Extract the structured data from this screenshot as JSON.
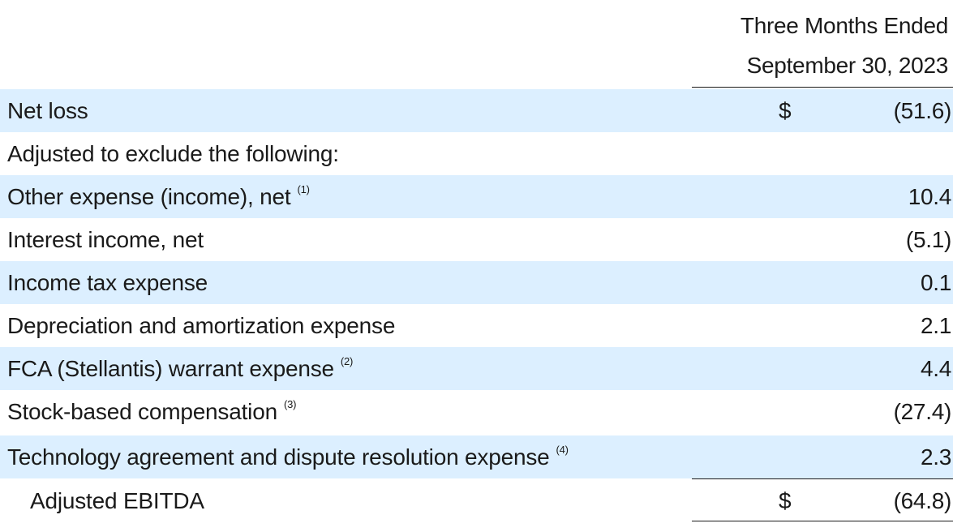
{
  "header": {
    "line1": "Three Months Ended",
    "line2": "September 30, 2023"
  },
  "rows": [
    {
      "label": "Net loss",
      "footnote": "",
      "currency": "$",
      "value": "(51.6)"
    },
    {
      "label": "Adjusted to exclude the following:",
      "footnote": "",
      "currency": "",
      "value": ""
    },
    {
      "label": "Other expense (income), net",
      "footnote": "(1)",
      "currency": "",
      "value": "10.4"
    },
    {
      "label": "Interest income, net",
      "footnote": "",
      "currency": "",
      "value": "(5.1)"
    },
    {
      "label": "Income tax expense",
      "footnote": "",
      "currency": "",
      "value": "0.1"
    },
    {
      "label": "Depreciation and amortization expense",
      "footnote": "",
      "currency": "",
      "value": "2.1"
    },
    {
      "label": "FCA (Stellantis) warrant expense",
      "footnote": "(2)",
      "currency": "",
      "value": "4.4"
    },
    {
      "label": "Stock-based compensation",
      "footnote": "(3)",
      "currency": "",
      "value": "(27.4)"
    },
    {
      "label": "Technology agreement and dispute resolution expense",
      "footnote": "(4)",
      "currency": "",
      "value": "2.3"
    },
    {
      "label": "Adjusted EBITDA",
      "footnote": "",
      "currency": "$",
      "value": "(64.8)"
    }
  ],
  "colors": {
    "row_shade": "#dcefff",
    "text": "#1a1a1a"
  }
}
